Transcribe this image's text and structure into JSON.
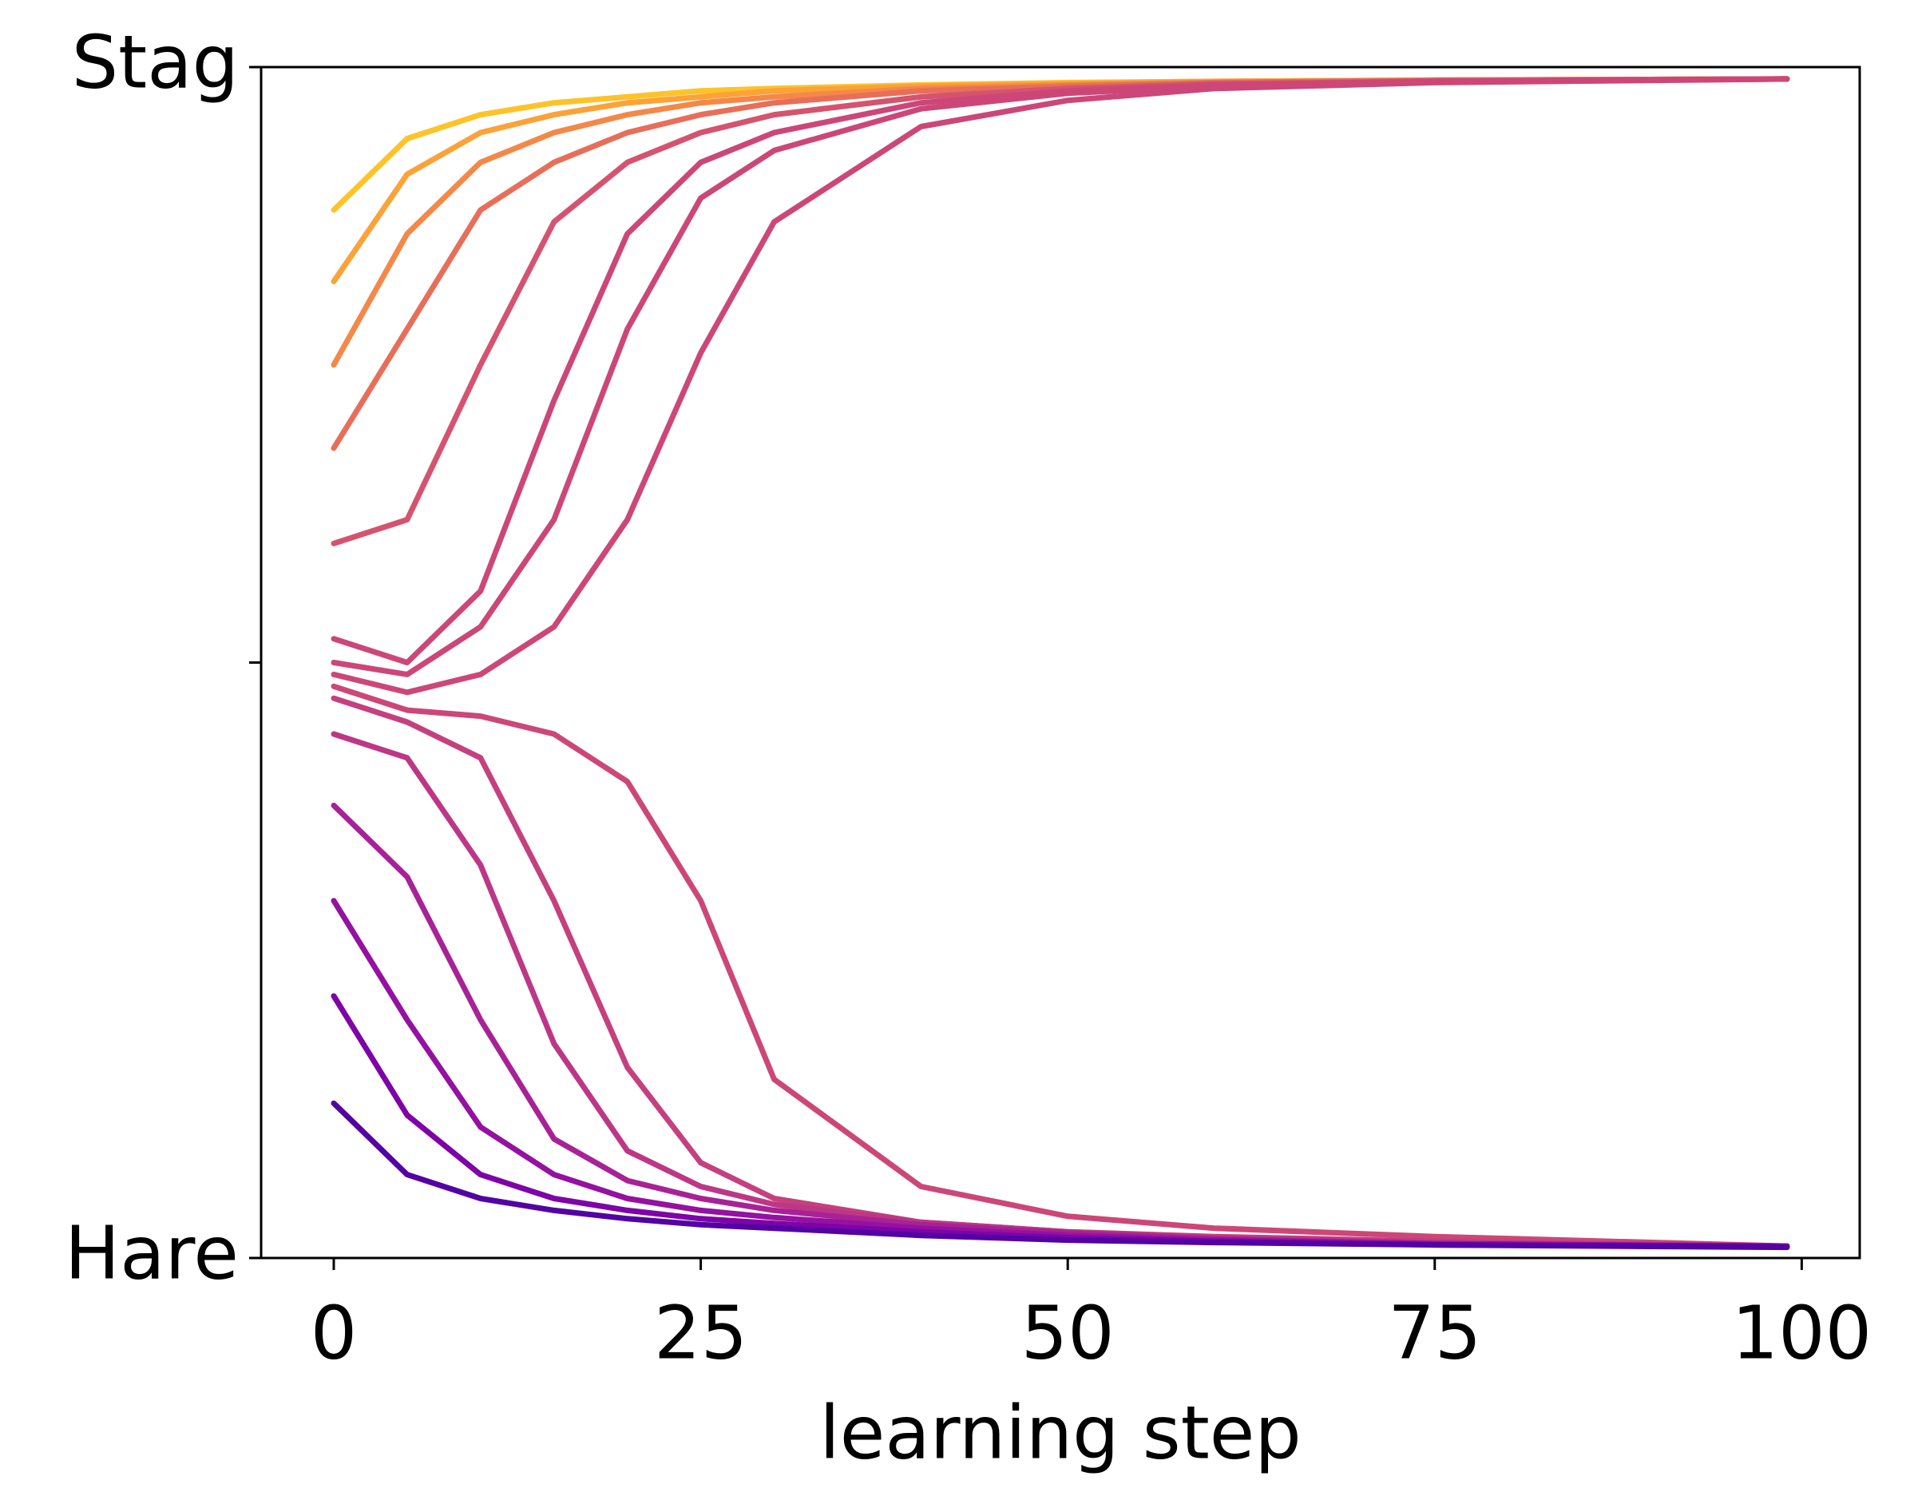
{
  "chart_data": {
    "type": "line",
    "xlabel": "learning step",
    "x": [
      0,
      5,
      10,
      15,
      20,
      25,
      30,
      40,
      50,
      60,
      75,
      99
    ],
    "xlim": [
      -4.95,
      103.95
    ],
    "xticks": [
      0,
      25,
      50,
      75,
      100
    ],
    "ylim": [
      0,
      1
    ],
    "yticks": [
      {
        "value": 0,
        "label": "Hare"
      },
      {
        "value": 0.5,
        "label": null
      },
      {
        "value": 1,
        "label": "Stag"
      }
    ],
    "series": [
      {
        "color": "#fdc328",
        "values": [
          0.88,
          0.94,
          0.96,
          0.97,
          0.975,
          0.98,
          0.982,
          0.985,
          0.987,
          0.988,
          0.989,
          0.99
        ]
      },
      {
        "color": "#fba238",
        "values": [
          0.82,
          0.91,
          0.945,
          0.96,
          0.97,
          0.975,
          0.98,
          0.984,
          0.986,
          0.988,
          0.989,
          0.99
        ]
      },
      {
        "color": "#f48849",
        "values": [
          0.75,
          0.86,
          0.92,
          0.945,
          0.96,
          0.97,
          0.975,
          0.982,
          0.985,
          0.987,
          0.989,
          0.99
        ]
      },
      {
        "color": "#e76f5a",
        "values": [
          0.68,
          0.78,
          0.88,
          0.92,
          0.945,
          0.96,
          0.97,
          0.98,
          0.984,
          0.987,
          0.989,
          0.99
        ]
      },
      {
        "color": "#d5536f",
        "values": [
          0.6,
          0.62,
          0.75,
          0.87,
          0.92,
          0.945,
          0.96,
          0.975,
          0.982,
          0.986,
          0.988,
          0.99
        ]
      },
      {
        "color": "#cc4778",
        "values": [
          0.52,
          0.5,
          0.56,
          0.72,
          0.86,
          0.92,
          0.945,
          0.97,
          0.98,
          0.985,
          0.988,
          0.99
        ]
      },
      {
        "color": "#cc4778",
        "values": [
          0.5,
          0.49,
          0.53,
          0.62,
          0.78,
          0.89,
          0.93,
          0.965,
          0.978,
          0.984,
          0.988,
          0.99
        ]
      },
      {
        "color": "#cc4778",
        "values": [
          0.49,
          0.475,
          0.49,
          0.53,
          0.62,
          0.76,
          0.87,
          0.95,
          0.972,
          0.982,
          0.987,
          0.99
        ]
      },
      {
        "color": "#cc4778",
        "values": [
          0.48,
          0.46,
          0.455,
          0.44,
          0.4,
          0.3,
          0.15,
          0.06,
          0.035,
          0.025,
          0.018,
          0.01
        ]
      },
      {
        "color": "#c5407e",
        "values": [
          0.47,
          0.45,
          0.42,
          0.3,
          0.16,
          0.08,
          0.05,
          0.03,
          0.022,
          0.018,
          0.014,
          0.01
        ]
      },
      {
        "color": "#bd3786",
        "values": [
          0.44,
          0.42,
          0.33,
          0.18,
          0.09,
          0.06,
          0.045,
          0.03,
          0.022,
          0.017,
          0.013,
          0.01
        ]
      },
      {
        "color": "#a82296",
        "values": [
          0.38,
          0.32,
          0.2,
          0.1,
          0.065,
          0.05,
          0.04,
          0.028,
          0.021,
          0.016,
          0.012,
          0.01
        ]
      },
      {
        "color": "#9511a1",
        "values": [
          0.3,
          0.2,
          0.11,
          0.07,
          0.05,
          0.04,
          0.034,
          0.025,
          0.019,
          0.015,
          0.012,
          0.01
        ]
      },
      {
        "color": "#7e03a8",
        "values": [
          0.22,
          0.12,
          0.07,
          0.05,
          0.04,
          0.033,
          0.029,
          0.022,
          0.017,
          0.014,
          0.011,
          0.01
        ]
      },
      {
        "color": "#5302a3",
        "values": [
          0.13,
          0.07,
          0.05,
          0.04,
          0.033,
          0.028,
          0.025,
          0.019,
          0.015,
          0.013,
          0.011,
          0.009
        ]
      }
    ]
  }
}
